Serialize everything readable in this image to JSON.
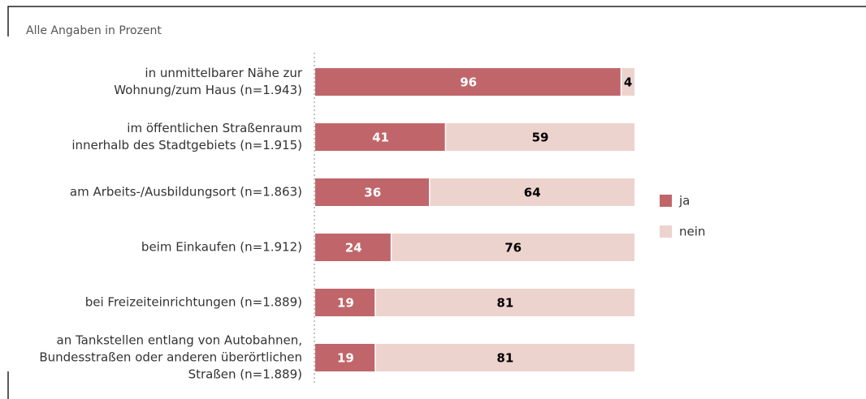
{
  "chart_data": {
    "type": "stacked-bar-horizontal",
    "subtitle": "Alle Angaben in Prozent",
    "categories": [
      [
        "in unmittelbarer Nähe zur",
        "Wohnung/zum Haus (n=1.943)"
      ],
      [
        "im öffentlichen Straßenraum",
        "innerhalb des Stadtgebiets (n=1.915)"
      ],
      [
        "am Arbeits-/Ausbildungsort (n=1.863)"
      ],
      [
        "beim Einkaufen (n=1.912)"
      ],
      [
        "bei Freizeiteinrichtungen (n=1.889)"
      ],
      [
        "an Tankstellen entlang von Autobahnen,",
        "Bundesstraßen oder anderen überörtlichen",
        "Straßen (n=1.889)"
      ]
    ],
    "series": [
      {
        "name": "ja",
        "color": "#c0666a",
        "label_color": "#ffffff",
        "values": [
          96,
          41,
          36,
          24,
          19,
          19
        ]
      },
      {
        "name": "nein",
        "color": "#edd3ce",
        "label_color": "#000000",
        "values": [
          4,
          59,
          64,
          76,
          81,
          81
        ]
      }
    ],
    "xlim": [
      0,
      100
    ],
    "legend": "right"
  }
}
